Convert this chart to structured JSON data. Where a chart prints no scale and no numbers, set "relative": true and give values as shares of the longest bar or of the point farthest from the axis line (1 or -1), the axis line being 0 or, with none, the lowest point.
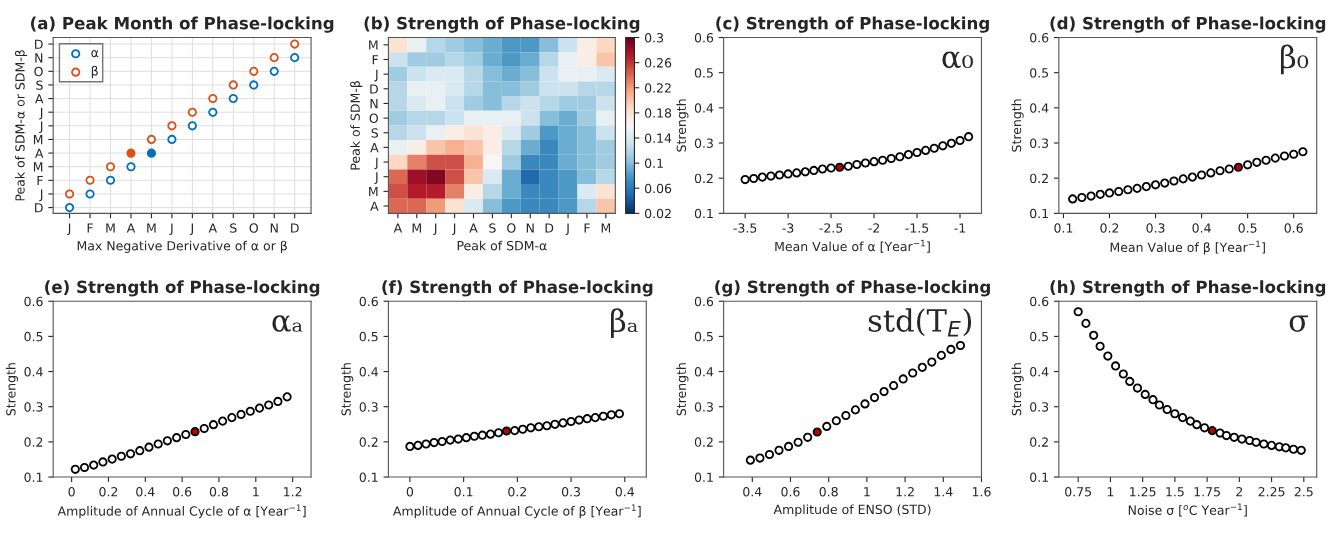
{
  "chart_data": [
    {
      "type": "scatter",
      "title": "(a) Peak Month of Phase-locking",
      "xlabel": "Max Negative Derivative of α or β",
      "ylabel": "Peak of SDM-α or SDM-β",
      "categories": [
        "J",
        "F",
        "M",
        "A",
        "M",
        "J",
        "J",
        "A",
        "S",
        "O",
        "N",
        "D"
      ],
      "relative": true,
      "y_categories": [
        "D",
        "J",
        "F",
        "M",
        "A",
        "M",
        "J",
        "J",
        "A",
        "S",
        "O",
        "N",
        "D"
      ],
      "grid": true,
      "legend": "top left",
      "marker": "circle",
      "series": [
        {
          "name": "α",
          "color": "#0072bd",
          "values": [
            0,
            0.083,
            0.167,
            0.25,
            null,
            0.417,
            0.5,
            0.583,
            0.667,
            0.75,
            0.833,
            0.917
          ]
        },
        {
          "name": "β",
          "color": "#d95319",
          "values": [
            0.083,
            0.167,
            0.25,
            null,
            0.417,
            0.5,
            0.583,
            0.667,
            0.75,
            0.833,
            0.917,
            1
          ]
        },
        {
          "color": "#0072bd",
          "colors": [
            null,
            null,
            null,
            null,
            "#0072bd",
            null,
            null,
            null,
            null,
            null,
            null,
            null
          ],
          "values": [
            null,
            null,
            null,
            null,
            0.333,
            null,
            null,
            null,
            null,
            null,
            null,
            null
          ]
        },
        {
          "color": "#d95319",
          "colors": [
            null,
            null,
            null,
            "#d95319",
            null,
            null,
            null,
            null,
            null,
            null,
            null,
            null
          ],
          "values": [
            null,
            null,
            null,
            0.333,
            null,
            null,
            null,
            null,
            null,
            null,
            null,
            null
          ]
        }
      ]
    },
    {
      "type": "heatmap",
      "title": "(b) Strength of Phase-locking",
      "xlabel": "Peak of SDM-α",
      "ylabel": "Peak of SDM-β",
      "categories": [
        "A",
        "M",
        "J",
        "J",
        "A",
        "S",
        "O",
        "N",
        "D",
        "J",
        "F",
        "M"
      ],
      "y_categories": [
        "M",
        "F",
        "J",
        "D",
        "N",
        "O",
        "S",
        "A",
        "J",
        "J",
        "M",
        "A"
      ],
      "clim": [
        0.02,
        0.3
      ],
      "cticks": [
        0.02,
        0.06,
        0.1,
        0.14,
        0.18,
        0.22,
        0.26,
        0.3
      ],
      "cells": [
        [
          0.18,
          0.15,
          0.12,
          0.11,
          0.1,
          0.09,
          0.08,
          0.08,
          0.1,
          0.13,
          0.17,
          0.19
        ],
        [
          0.13,
          0.11,
          0.11,
          0.12,
          0.11,
          0.09,
          0.08,
          0.09,
          0.12,
          0.15,
          0.17,
          0.2
        ],
        [
          0.11,
          0.13,
          0.14,
          0.14,
          0.12,
          0.1,
          0.09,
          0.1,
          0.13,
          0.15,
          0.15,
          0.14
        ],
        [
          0.12,
          0.15,
          0.15,
          0.14,
          0.12,
          0.1,
          0.1,
          0.11,
          0.13,
          0.13,
          0.12,
          0.12
        ],
        [
          0.12,
          0.14,
          0.15,
          0.13,
          0.11,
          0.1,
          0.12,
          0.13,
          0.12,
          0.11,
          0.11,
          0.13
        ],
        [
          0.11,
          0.12,
          0.12,
          0.13,
          0.15,
          0.15,
          0.15,
          0.13,
          0.1,
          0.09,
          0.11,
          0.15
        ],
        [
          0.12,
          0.13,
          0.15,
          0.17,
          0.18,
          0.17,
          0.14,
          0.11,
          0.08,
          0.09,
          0.1,
          0.13
        ],
        [
          0.15,
          0.17,
          0.2,
          0.21,
          0.2,
          0.17,
          0.12,
          0.09,
          0.07,
          0.09,
          0.1,
          0.11
        ],
        [
          0.19,
          0.23,
          0.25,
          0.25,
          0.21,
          0.16,
          0.11,
          0.07,
          0.07,
          0.09,
          0.1,
          0.11
        ],
        [
          0.24,
          0.28,
          0.29,
          0.25,
          0.2,
          0.14,
          0.09,
          0.05,
          0.07,
          0.08,
          0.1,
          0.12
        ],
        [
          0.25,
          0.27,
          0.27,
          0.23,
          0.17,
          0.12,
          0.09,
          0.07,
          0.07,
          0.08,
          0.14,
          0.18
        ],
        [
          0.24,
          0.24,
          0.22,
          0.18,
          0.14,
          0.1,
          0.08,
          0.07,
          0.07,
          0.08,
          0.12,
          0.2
        ]
      ]
    },
    {
      "type": "scatter",
      "title": "(c) Strength of Phase-locking",
      "xlabel": "Mean Value of α [Year$^{−1}$]",
      "ylabel": "Strength",
      "annotations": [
        "α₀"
      ],
      "xlim": [
        -3.75,
        -0.75
      ],
      "xticks": [
        -3.5,
        -3,
        -2.5,
        -2,
        -1.5,
        -1
      ],
      "ylim": [
        0.1,
        0.6
      ],
      "yticks": [
        0.1,
        0.2,
        0.3,
        0.4,
        0.5,
        0.6
      ],
      "marker": "circle",
      "series": [
        {
          "color": "#000000",
          "x": [
            -3.5,
            -3.4,
            -3.3,
            -3.2,
            -3.1,
            -3.0,
            -2.9,
            -2.8,
            -2.7,
            -2.6,
            -2.5,
            -2.3,
            -2.2,
            -2.1,
            -2.0,
            -1.9,
            -1.8,
            -1.7,
            -1.6,
            -1.5,
            -1.4,
            -1.3,
            -1.2,
            -1.1,
            -1.0,
            -0.9
          ],
          "values": [
            0.196,
            0.199,
            0.203,
            0.206,
            0.209,
            0.212,
            0.215,
            0.218,
            0.222,
            0.226,
            0.229,
            0.234,
            0.239,
            0.243,
            0.247,
            0.251,
            0.256,
            0.261,
            0.267,
            0.273,
            0.279,
            0.285,
            0.292,
            0.299,
            0.307,
            0.318
          ]
        },
        {
          "color": "#000000",
          "colors": [
            "#c00000"
          ],
          "x": [
            -2.4
          ],
          "values": [
            0.231
          ]
        }
      ]
    },
    {
      "type": "scatter",
      "title": "(d) Strength of Phase-locking",
      "xlabel": "Mean Value of β [Year$^{−1}$]",
      "ylabel": "Strength",
      "annotations": [
        "β₀"
      ],
      "xlim": [
        0.09,
        0.65
      ],
      "xticks": [
        0.1,
        0.2,
        0.3,
        0.4,
        0.5,
        0.6
      ],
      "ylim": [
        0.1,
        0.6
      ],
      "yticks": [
        0.1,
        0.2,
        0.3,
        0.4,
        0.5,
        0.6
      ],
      "marker": "circle",
      "series": [
        {
          "color": "#000000",
          "x": [
            0.12,
            0.14,
            0.16,
            0.18,
            0.2,
            0.22,
            0.24,
            0.26,
            0.28,
            0.3,
            0.32,
            0.34,
            0.36,
            0.38,
            0.4,
            0.42,
            0.44,
            0.46,
            0.5,
            0.52,
            0.54,
            0.56,
            0.58,
            0.6,
            0.62
          ],
          "values": [
            0.141,
            0.145,
            0.149,
            0.154,
            0.158,
            0.162,
            0.167,
            0.171,
            0.176,
            0.181,
            0.186,
            0.192,
            0.198,
            0.203,
            0.209,
            0.215,
            0.221,
            0.226,
            0.238,
            0.245,
            0.251,
            0.257,
            0.263,
            0.268,
            0.275
          ]
        },
        {
          "color": "#000000",
          "colors": [
            "#c00000"
          ],
          "x": [
            0.48
          ],
          "values": [
            0.231
          ]
        }
      ]
    },
    {
      "type": "scatter",
      "title": "(e) Strength of Phase-locking",
      "xlabel": "Amplitude of Annual Cycle of α [Year$^{−1}$]",
      "ylabel": "Strength",
      "annotations": [
        "αₐ"
      ],
      "xlim": [
        -0.1,
        1.3
      ],
      "xticks": [
        0,
        0.2,
        0.4,
        0.6,
        0.8,
        1,
        1.2
      ],
      "ylim": [
        0.1,
        0.6
      ],
      "yticks": [
        0.1,
        0.2,
        0.3,
        0.4,
        0.5,
        0.6
      ],
      "marker": "circle",
      "series": [
        {
          "color": "#000000",
          "x": [
            0.02,
            0.07,
            0.12,
            0.17,
            0.22,
            0.27,
            0.32,
            0.37,
            0.42,
            0.47,
            0.52,
            0.57,
            0.62,
            0.72,
            0.77,
            0.82,
            0.87,
            0.92,
            0.97,
            1.02,
            1.07,
            1.12,
            1.17
          ],
          "values": [
            0.122,
            0.127,
            0.134,
            0.143,
            0.151,
            0.159,
            0.166,
            0.175,
            0.185,
            0.194,
            0.203,
            0.212,
            0.221,
            0.238,
            0.249,
            0.259,
            0.269,
            0.278,
            0.287,
            0.296,
            0.305,
            0.315,
            0.328
          ]
        },
        {
          "color": "#000000",
          "colors": [
            "#c00000"
          ],
          "x": [
            0.67
          ],
          "values": [
            0.229
          ]
        }
      ]
    },
    {
      "type": "scatter",
      "title": "(f) Strength of Phase-locking",
      "xlabel": "Amplitude of Annual Cycle of β [Year$^{−1}$]",
      "ylabel": "Strength",
      "annotations": [
        "βₐ"
      ],
      "xlim": [
        -0.04,
        0.44
      ],
      "xticks": [
        0,
        0.1,
        0.2,
        0.3,
        0.4
      ],
      "ylim": [
        0.1,
        0.6
      ],
      "yticks": [
        0.1,
        0.2,
        0.3,
        0.4,
        0.5,
        0.6
      ],
      "marker": "circle",
      "series": [
        {
          "color": "#000000",
          "x": [
            0,
            0.015,
            0.03,
            0.045,
            0.06,
            0.075,
            0.09,
            0.105,
            0.12,
            0.135,
            0.15,
            0.165,
            0.195,
            0.21,
            0.225,
            0.24,
            0.255,
            0.27,
            0.285,
            0.3,
            0.315,
            0.33,
            0.345,
            0.36,
            0.375,
            0.39
          ],
          "values": [
            0.187,
            0.19,
            0.194,
            0.198,
            0.201,
            0.205,
            0.208,
            0.212,
            0.216,
            0.219,
            0.222,
            0.226,
            0.232,
            0.236,
            0.24,
            0.243,
            0.246,
            0.25,
            0.254,
            0.258,
            0.262,
            0.266,
            0.269,
            0.273,
            0.277,
            0.28
          ]
        },
        {
          "color": "#000000",
          "colors": [
            "#c00000"
          ],
          "x": [
            0.18
          ],
          "values": [
            0.231
          ]
        }
      ]
    },
    {
      "type": "scatter",
      "title": "(g) Strength of Phase-locking",
      "xlabel": "Amplitude of ENSO (STD)",
      "ylabel": "Strength",
      "annotations": [
        "std(T$_{E}$)"
      ],
      "xlim": [
        0.25,
        1.6
      ],
      "xticks": [
        0.4,
        0.6,
        0.8,
        1,
        1.2,
        1.4,
        1.6
      ],
      "ylim": [
        0.1,
        0.6
      ],
      "yticks": [
        0.1,
        0.2,
        0.3,
        0.4,
        0.5,
        0.6
      ],
      "marker": "circle",
      "series": [
        {
          "color": "#000000",
          "x": [
            0.39,
            0.44,
            0.49,
            0.54,
            0.59,
            0.64,
            0.69,
            0.79,
            0.84,
            0.89,
            0.94,
            0.99,
            1.04,
            1.09,
            1.14,
            1.19,
            1.24,
            1.29,
            1.34,
            1.39,
            1.44,
            1.49
          ],
          "values": [
            0.148,
            0.154,
            0.164,
            0.176,
            0.187,
            0.199,
            0.213,
            0.244,
            0.26,
            0.275,
            0.291,
            0.308,
            0.326,
            0.343,
            0.36,
            0.379,
            0.396,
            0.412,
            0.427,
            0.446,
            0.463,
            0.474
          ]
        },
        {
          "color": "#000000",
          "colors": [
            "#c00000"
          ],
          "x": [
            0.74
          ],
          "values": [
            0.228
          ]
        }
      ]
    },
    {
      "type": "scatter",
      "title": "(h) Strength of Phase-locking",
      "xlabel": "Noise σ [$^{o}$C Year$^{−1}$]",
      "ylabel": "Strength",
      "annotations": [
        "σ"
      ],
      "xlim": [
        0.6,
        2.6
      ],
      "xticks": [
        0.75,
        1,
        1.25,
        1.5,
        1.75,
        2,
        2.25,
        2.5
      ],
      "ylim": [
        0.1,
        0.6
      ],
      "yticks": [
        0.1,
        0.2,
        0.3,
        0.4,
        0.5,
        0.6
      ],
      "marker": "circle",
      "series": [
        {
          "color": "#000000",
          "x": [
            0.75,
            0.81,
            0.87,
            0.92,
            0.98,
            1.04,
            1.1,
            1.15,
            1.21,
            1.27,
            1.33,
            1.38,
            1.44,
            1.5,
            1.56,
            1.62,
            1.67,
            1.73,
            1.85,
            1.9,
            1.96,
            2.02,
            2.08,
            2.13,
            2.19,
            2.25,
            2.31,
            2.36,
            2.42,
            2.48
          ],
          "values": [
            0.57,
            0.537,
            0.503,
            0.472,
            0.444,
            0.416,
            0.393,
            0.372,
            0.353,
            0.335,
            0.32,
            0.305,
            0.292,
            0.28,
            0.269,
            0.259,
            0.249,
            0.24,
            0.225,
            0.218,
            0.213,
            0.208,
            0.204,
            0.199,
            0.194,
            0.19,
            0.186,
            0.183,
            0.179,
            0.176
          ]
        },
        {
          "color": "#000000",
          "colors": [
            "#c00000"
          ],
          "x": [
            1.79
          ],
          "values": [
            0.232
          ]
        }
      ]
    }
  ]
}
